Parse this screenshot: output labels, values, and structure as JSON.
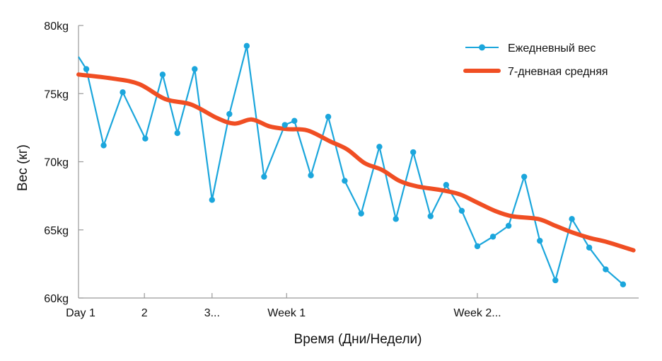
{
  "chart_data": {
    "type": "line",
    "title": "",
    "xlabel": "Время (Дни/Недели)",
    "ylabel": "Вес (кг)",
    "ylim": [
      60,
      80
    ],
    "y_ticks": [
      {
        "value": 60,
        "label": "60kg"
      },
      {
        "value": 65,
        "label": "65kg"
      },
      {
        "value": 70,
        "label": "70kg"
      },
      {
        "value": 75,
        "label": "75kg"
      },
      {
        "value": 80,
        "label": "80kg"
      }
    ],
    "xlim": [
      0,
      32.3
    ],
    "x_ticks": [
      {
        "value": 0,
        "label": "Day 1"
      },
      {
        "value": 3.8,
        "label": "2"
      },
      {
        "value": 7.7,
        "label": "3..."
      },
      {
        "value": 12,
        "label": "Week 1"
      },
      {
        "value": 23,
        "label": "Week 2..."
      }
    ],
    "legend_position": "top-right",
    "series": [
      {
        "name": "Ежедневный вес",
        "style": "line-markers",
        "color": "#1ba6dc",
        "x": [
          0.45,
          1.45,
          2.55,
          3.85,
          4.85,
          5.7,
          6.7,
          7.7,
          8.7,
          9.7,
          10.7,
          11.9,
          12.45,
          13.4,
          14.4,
          15.35,
          16.3,
          17.35,
          18.3,
          19.3,
          20.3,
          21.2,
          22.1,
          23.0,
          23.9,
          24.8,
          25.7,
          26.6,
          27.5,
          28.45,
          29.45,
          30.4,
          31.4
        ],
        "values": [
          76.8,
          71.2,
          75.1,
          71.7,
          76.4,
          72.1,
          76.8,
          67.2,
          73.5,
          78.5,
          68.9,
          72.7,
          73.0,
          69.0,
          73.3,
          68.6,
          66.2,
          71.1,
          65.8,
          70.7,
          66.0,
          68.3,
          66.4,
          63.8,
          64.5,
          65.3,
          68.9,
          64.2,
          61.3,
          65.8,
          63.7,
          62.1,
          61.0
        ]
      },
      {
        "name": "7-дневная средняя",
        "style": "line",
        "color": "#f04e23",
        "x": [
          0,
          2.0,
          3.5,
          5.0,
          6.5,
          8.0,
          9.0,
          10.0,
          11.0,
          12.0,
          13.2,
          14.5,
          15.5,
          16.5,
          17.5,
          18.5,
          19.5,
          21.0,
          22.0,
          23.0,
          24.0,
          25.0,
          26.5,
          27.5,
          28.5,
          29.5,
          30.5,
          32.0
        ],
        "values": [
          76.4,
          76.1,
          75.7,
          74.6,
          74.2,
          73.2,
          72.8,
          73.1,
          72.6,
          72.4,
          72.3,
          71.5,
          70.9,
          69.9,
          69.4,
          68.6,
          68.2,
          67.9,
          67.6,
          67.0,
          66.4,
          66.0,
          65.8,
          65.3,
          64.8,
          64.4,
          64.1,
          63.5
        ]
      }
    ]
  }
}
